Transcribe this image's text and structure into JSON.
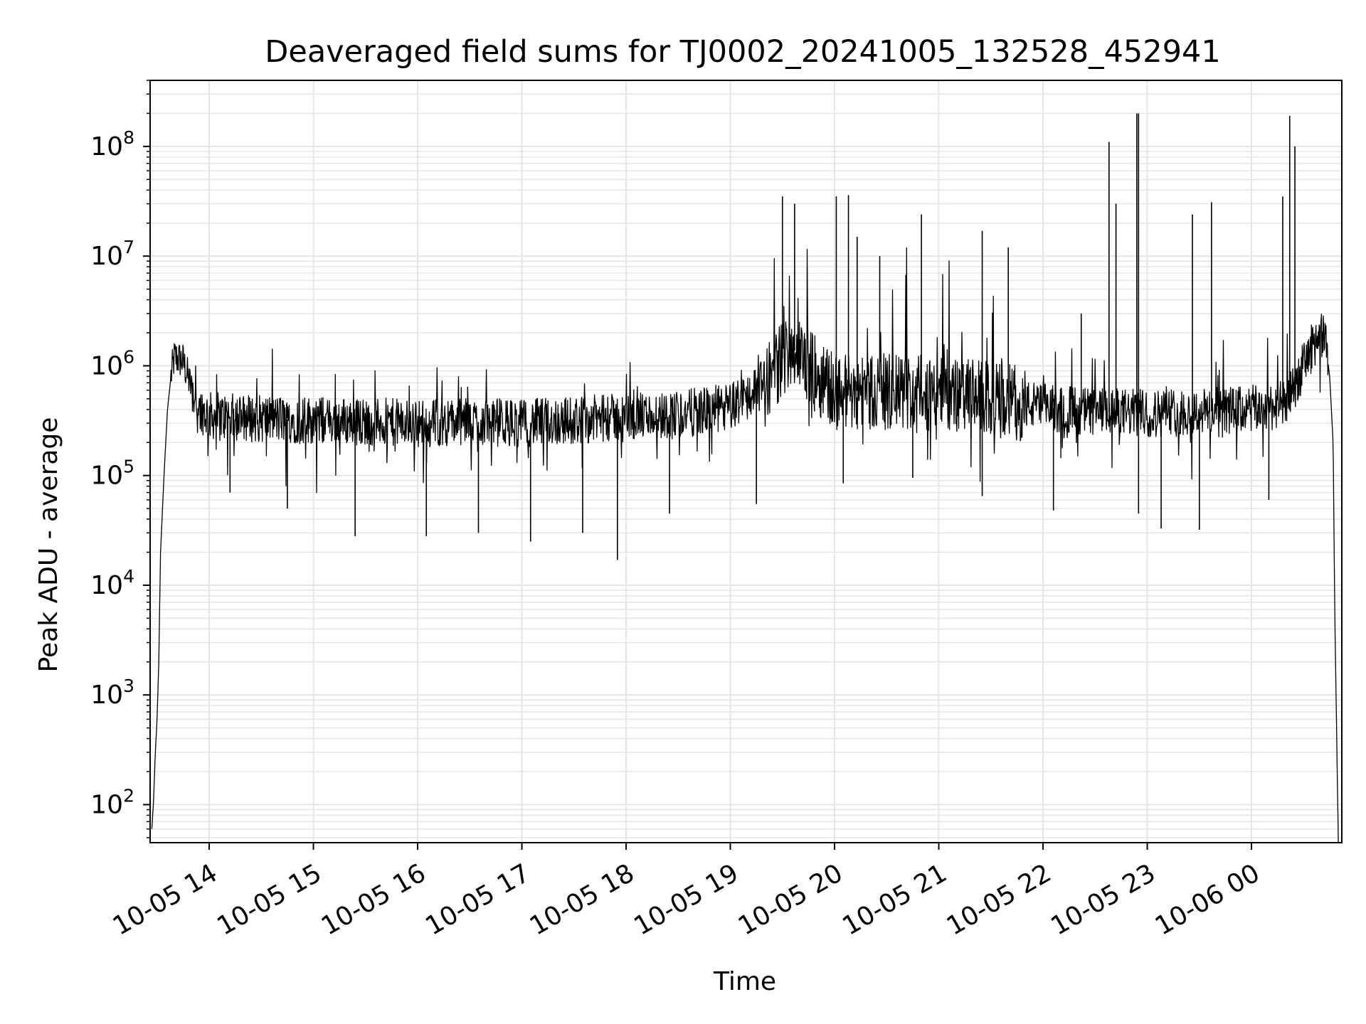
{
  "chart_data": {
    "type": "line",
    "title": "Deaveraged field sums for TJ0002_20241005_132528_452941",
    "xlabel": "Time",
    "ylabel": "Peak ADU - average",
    "yscale": "log",
    "ylim": [
      45,
      400000000
    ],
    "xlim": [
      "10-05 13:26",
      "10-06 00:52"
    ],
    "grid": true,
    "line_color": "#000000",
    "grid_color": "#e5e5e5",
    "x_ticks": [
      {
        "hour": 14,
        "label": "10-05 14"
      },
      {
        "hour": 15,
        "label": "10-05 15"
      },
      {
        "hour": 16,
        "label": "10-05 16"
      },
      {
        "hour": 17,
        "label": "10-05 17"
      },
      {
        "hour": 18,
        "label": "10-05 18"
      },
      {
        "hour": 19,
        "label": "10-05 19"
      },
      {
        "hour": 20,
        "label": "10-05 20"
      },
      {
        "hour": 21,
        "label": "10-05 21"
      },
      {
        "hour": 22,
        "label": "10-05 22"
      },
      {
        "hour": 23,
        "label": "10-05 23"
      },
      {
        "hour": 24,
        "label": "10-06 00"
      }
    ],
    "y_ticks": [
      {
        "exp": 2,
        "base": "10",
        "sup": "2"
      },
      {
        "exp": 3,
        "base": "10",
        "sup": "3"
      },
      {
        "exp": 4,
        "base": "10",
        "sup": "4"
      },
      {
        "exp": 5,
        "base": "10",
        "sup": "5"
      },
      {
        "exp": 6,
        "base": "10",
        "sup": "6"
      },
      {
        "exp": 7,
        "base": "10",
        "sup": "7"
      },
      {
        "exp": 8,
        "base": "10",
        "sup": "8"
      }
    ],
    "series": [
      {
        "x": [
          "10-05 13:27",
          "10-05 13:28",
          "10-05 13:29",
          "10-05 13:30",
          "10-05 13:31",
          "10-05 13:32",
          "10-05 13:34",
          "10-05 13:36",
          "10-05 13:38",
          "10-05 13:40",
          "10-05 13:45",
          "10-05 13:50",
          "10-05 13:55",
          "10-05 14:00",
          "10-05 14:30",
          "10-05 15:00",
          "10-05 15:30",
          "10-05 16:00",
          "10-05 16:30",
          "10-05 17:00",
          "10-05 17:30",
          "10-05 18:00",
          "10-05 18:30",
          "10-05 19:00",
          "10-05 19:20",
          "10-05 19:35",
          "10-05 19:50",
          "10-05 20:00",
          "10-05 20:30",
          "10-05 21:00",
          "10-05 21:30",
          "10-05 22:00",
          "10-05 22:30",
          "10-05 23:00",
          "10-05 23:30",
          "10-06 00:00",
          "10-06 00:20",
          "10-06 00:35",
          "10-06 00:40",
          "10-06 00:43",
          "10-06 00:45",
          "10-06 00:47",
          "10-06 00:48",
          "10-06 00:50"
        ],
        "y": [
          60,
          110,
          300,
          600,
          2000,
          20000,
          100000,
          400000,
          800000,
          1200000,
          1100000,
          600000,
          400000,
          350000,
          330000,
          320000,
          310000,
          300000,
          310000,
          300000,
          320000,
          340000,
          360000,
          420000,
          700000,
          1500000,
          800000,
          600000,
          580000,
          550000,
          500000,
          420000,
          380000,
          370000,
          380000,
          400000,
          450000,
          1500000,
          2000000,
          1500000,
          800000,
          200000,
          5000,
          45
        ],
        "spikes": [
          {
            "x": "10-05 19:30",
            "y": 35000000
          },
          {
            "x": "10-05 19:37",
            "y": 30000000
          },
          {
            "x": "10-05 20:01",
            "y": 35000000
          },
          {
            "x": "10-05 20:08",
            "y": 36000000
          },
          {
            "x": "10-05 20:13",
            "y": 15000000
          },
          {
            "x": "10-05 20:26",
            "y": 10000000
          },
          {
            "x": "10-05 20:50",
            "y": 24000000
          },
          {
            "x": "10-05 21:25",
            "y": 17000000
          },
          {
            "x": "10-05 21:40",
            "y": 12000000
          },
          {
            "x": "10-05 22:22",
            "y": 3000000
          },
          {
            "x": "10-05 22:38",
            "y": 110000000
          },
          {
            "x": "10-05 22:42",
            "y": 30000000
          },
          {
            "x": "10-05 22:54",
            "y": 200000000
          },
          {
            "x": "10-05 22:55",
            "y": 200000000
          },
          {
            "x": "10-05 23:26",
            "y": 24000000
          },
          {
            "x": "10-05 23:37",
            "y": 31000000
          },
          {
            "x": "10-06 00:18",
            "y": 35000000
          },
          {
            "x": "10-06 00:22",
            "y": 190000000
          },
          {
            "x": "10-06 00:25",
            "y": 100000000
          }
        ],
        "dips": [
          {
            "x": "10-05 14:12",
            "y": 70000
          },
          {
            "x": "10-05 14:45",
            "y": 50000
          },
          {
            "x": "10-05 15:24",
            "y": 28000
          },
          {
            "x": "10-05 16:05",
            "y": 28000
          },
          {
            "x": "10-05 16:35",
            "y": 30000
          },
          {
            "x": "10-05 17:05",
            "y": 25000
          },
          {
            "x": "10-05 17:35",
            "y": 30000
          },
          {
            "x": "10-05 17:55",
            "y": 17000
          },
          {
            "x": "10-05 18:25",
            "y": 45000
          },
          {
            "x": "10-05 19:15",
            "y": 55000
          },
          {
            "x": "10-05 20:05",
            "y": 85000
          },
          {
            "x": "10-05 20:45",
            "y": 95000
          },
          {
            "x": "10-05 21:25",
            "y": 65000
          },
          {
            "x": "10-05 22:06",
            "y": 48000
          },
          {
            "x": "10-05 22:55",
            "y": 45000
          },
          {
            "x": "10-05 23:08",
            "y": 33000
          },
          {
            "x": "10-05 23:30",
            "y": 32000
          },
          {
            "x": "10-06 00:10",
            "y": 60000
          }
        ]
      }
    ]
  }
}
